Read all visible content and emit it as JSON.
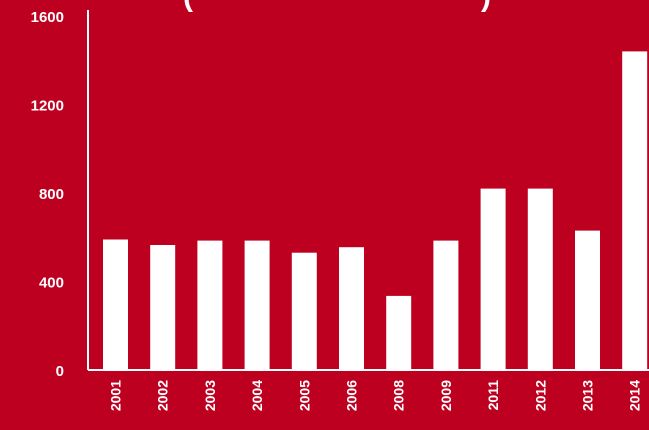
{
  "colors": {
    "background": "#BE0020",
    "bar": "#FFFFFF",
    "axis": "#FFFFFF",
    "text": "#FFFFFF"
  },
  "chart_data": {
    "type": "bar",
    "title": "",
    "xlabel": "",
    "ylabel": "",
    "categories": [
      "2001",
      "2002",
      "2003",
      "2004",
      "2005",
      "2006",
      "2008",
      "2009",
      "2011",
      "2012",
      "2013",
      "2014"
    ],
    "values": [
      590,
      565,
      585,
      585,
      530,
      555,
      335,
      585,
      820,
      820,
      630,
      1440
    ],
    "ylim": [
      0,
      1600
    ],
    "yticks": [
      0,
      400,
      800,
      1200,
      1600
    ],
    "grid": false,
    "legend": "none"
  }
}
